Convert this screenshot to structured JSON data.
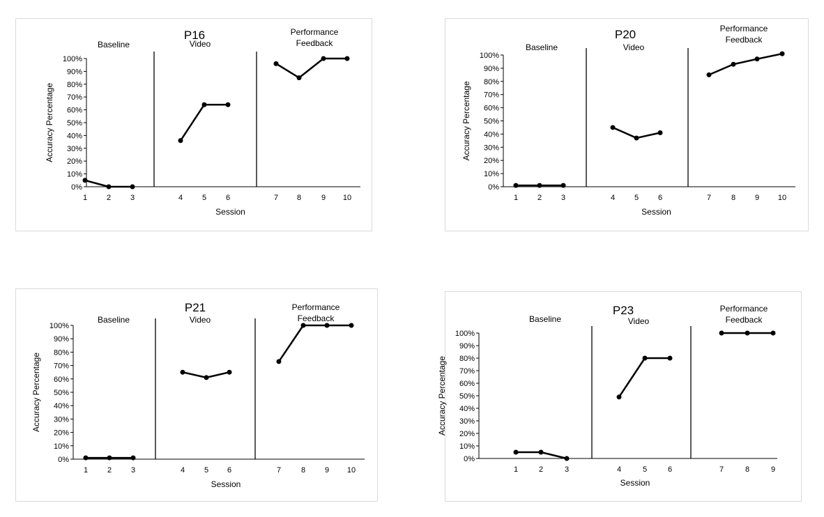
{
  "chart_data": [
    {
      "type": "line",
      "title": "P16",
      "xlabel": "Session",
      "ylabel": "Accuracy Percentage",
      "ylim": [
        0,
        100
      ],
      "yticks": [
        "0%",
        "10%",
        "20%",
        "30%",
        "40%",
        "50%",
        "60%",
        "70%",
        "80%",
        "90%",
        "100%"
      ],
      "grid": false,
      "phases": [
        {
          "label": [
            "Baseline"
          ],
          "sessions": [
            1,
            2,
            3
          ],
          "values": [
            5,
            0,
            0
          ]
        },
        {
          "label": [
            "Video"
          ],
          "sessions": [
            4,
            5,
            6
          ],
          "values": [
            36,
            64,
            64
          ]
        },
        {
          "label": [
            "Performance",
            "Feedback"
          ],
          "sessions": [
            7,
            8,
            9,
            10
          ],
          "values": [
            96,
            85,
            100,
            100
          ]
        }
      ]
    },
    {
      "type": "line",
      "title": "P20",
      "xlabel": "Session",
      "ylabel": "Accuracy Percentage",
      "ylim": [
        0,
        100
      ],
      "yticks": [
        "0%",
        "10%",
        "20%",
        "30%",
        "40%",
        "50%",
        "60%",
        "70%",
        "80%",
        "90%",
        "100%"
      ],
      "grid": false,
      "phases": [
        {
          "label": [
            "Baseline"
          ],
          "sessions": [
            1,
            2,
            3
          ],
          "values": [
            1,
            1,
            1
          ]
        },
        {
          "label": [
            "Video"
          ],
          "sessions": [
            4,
            5,
            6
          ],
          "values": [
            45,
            37,
            41
          ]
        },
        {
          "label": [
            "Performance",
            "Feedback"
          ],
          "sessions": [
            7,
            8,
            9,
            10
          ],
          "values": [
            85,
            93,
            97,
            101
          ]
        }
      ]
    },
    {
      "type": "line",
      "title": "P21",
      "xlabel": "Session",
      "ylabel": "Accuracy Percentage",
      "ylim": [
        0,
        100
      ],
      "yticks": [
        "0%",
        "10%",
        "20%",
        "30%",
        "40%",
        "50%",
        "60%",
        "70%",
        "80%",
        "90%",
        "100%"
      ],
      "grid": false,
      "phases": [
        {
          "label": [
            "Baseline"
          ],
          "sessions": [
            1,
            2,
            3
          ],
          "values": [
            1,
            1,
            1
          ]
        },
        {
          "label": [
            "Video"
          ],
          "sessions": [
            4,
            5,
            6
          ],
          "values": [
            65,
            61,
            65
          ]
        },
        {
          "label": [
            "Performance",
            "Feedback"
          ],
          "sessions": [
            7,
            8,
            9,
            10
          ],
          "values": [
            73,
            100,
            100,
            100
          ]
        }
      ]
    },
    {
      "type": "line",
      "title": "P23",
      "xlabel": "Session",
      "ylabel": "Accuracy Percentage",
      "ylim": [
        0,
        100
      ],
      "yticks": [
        "0%",
        "10%",
        "20%",
        "30%",
        "40%",
        "50%",
        "60%",
        "70%",
        "80%",
        "90%",
        "100%"
      ],
      "grid": false,
      "phases": [
        {
          "label": [
            "Baseline"
          ],
          "sessions": [
            1,
            2,
            3
          ],
          "values": [
            5,
            5,
            0
          ]
        },
        {
          "label": [
            "Video"
          ],
          "sessions": [
            4,
            5,
            6
          ],
          "values": [
            49,
            80,
            80
          ]
        },
        {
          "label": [
            "Performance",
            "Feedback"
          ],
          "sessions": [
            7,
            8,
            9
          ],
          "values": [
            100,
            100,
            100
          ]
        }
      ]
    }
  ]
}
